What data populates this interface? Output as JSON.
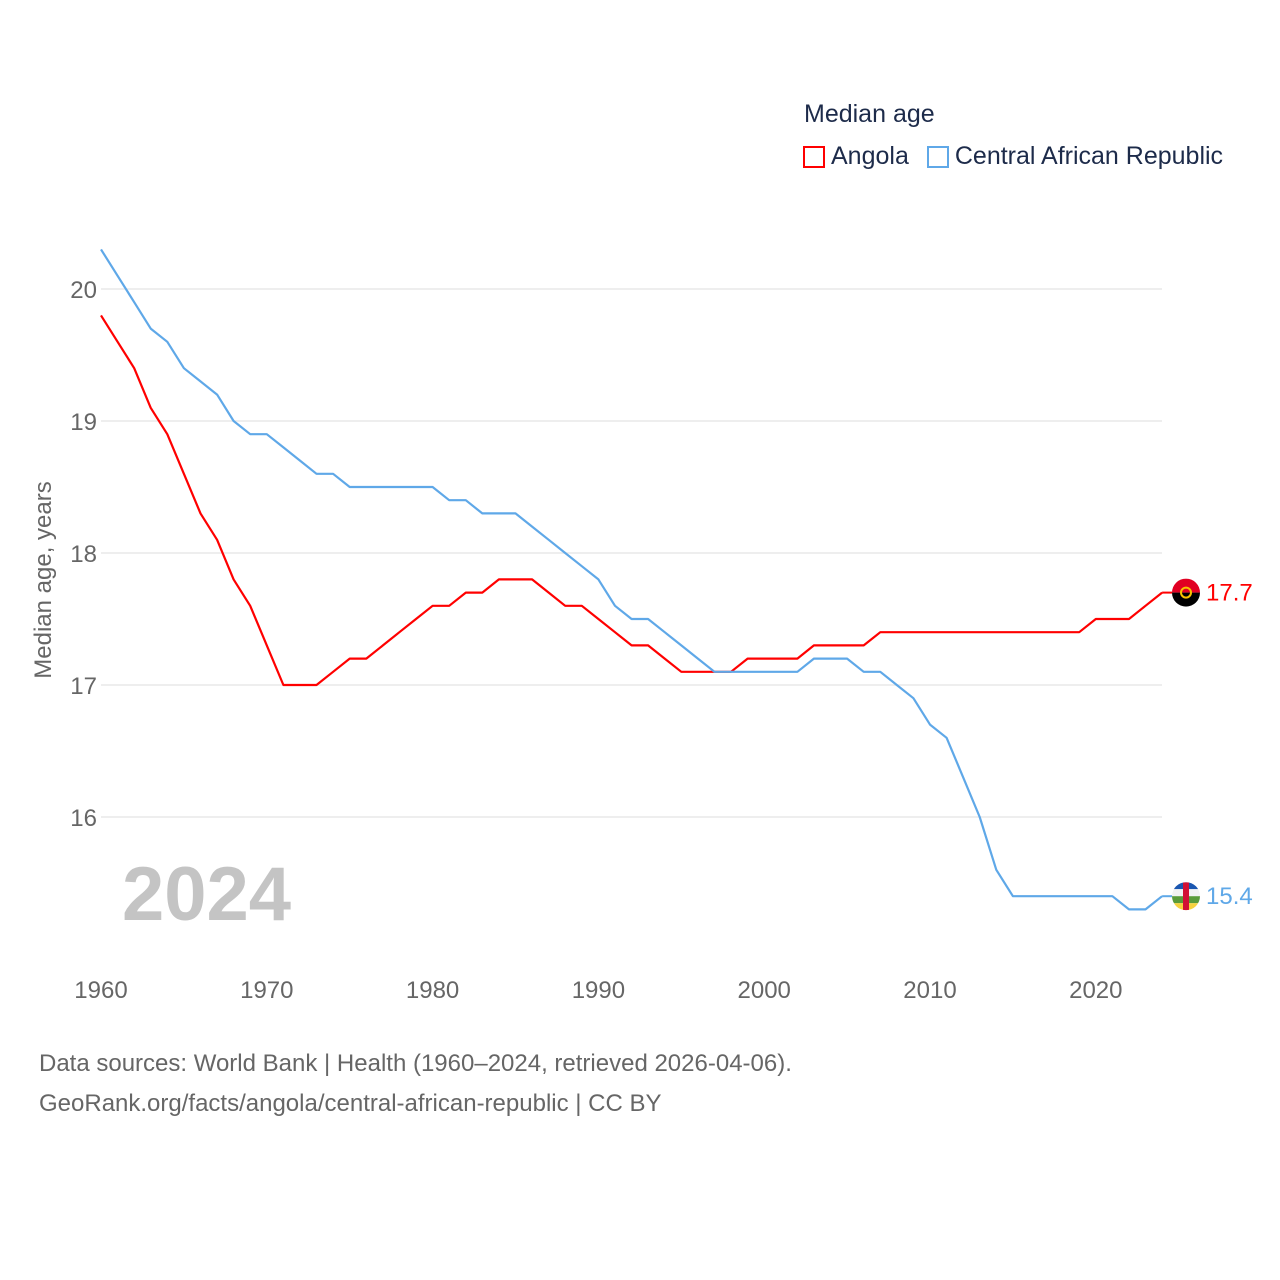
{
  "chart_data": {
    "type": "line",
    "title": "Median age",
    "ylabel": "Median age, years",
    "xlabel": "",
    "xlim": [
      1960,
      2024
    ],
    "ylim": [
      15.0,
      20.5
    ],
    "x_ticks": [
      1960,
      1970,
      1980,
      1990,
      2000,
      2010,
      2020
    ],
    "y_ticks": [
      16,
      17,
      18,
      19,
      20
    ],
    "grid": true,
    "legend_position": "top-right",
    "current_year_label": "2024",
    "x": [
      1960,
      1961,
      1962,
      1963,
      1964,
      1965,
      1966,
      1967,
      1968,
      1969,
      1970,
      1971,
      1972,
      1973,
      1974,
      1975,
      1976,
      1977,
      1978,
      1979,
      1980,
      1981,
      1982,
      1983,
      1984,
      1985,
      1986,
      1987,
      1988,
      1989,
      1990,
      1991,
      1992,
      1993,
      1994,
      1995,
      1996,
      1997,
      1998,
      1999,
      2000,
      2001,
      2002,
      2003,
      2004,
      2005,
      2006,
      2007,
      2008,
      2009,
      2010,
      2011,
      2012,
      2013,
      2014,
      2015,
      2016,
      2017,
      2018,
      2019,
      2020,
      2021,
      2022,
      2023,
      2024
    ],
    "series": [
      {
        "name": "Angola",
        "color": "#ff0000",
        "end_label": "17.7",
        "values": [
          19.8,
          19.6,
          19.4,
          19.1,
          18.9,
          18.6,
          18.3,
          18.1,
          17.8,
          17.6,
          17.3,
          17.0,
          17.0,
          17.0,
          17.1,
          17.2,
          17.2,
          17.3,
          17.4,
          17.5,
          17.6,
          17.6,
          17.7,
          17.7,
          17.8,
          17.8,
          17.8,
          17.7,
          17.6,
          17.6,
          17.5,
          17.4,
          17.3,
          17.3,
          17.2,
          17.1,
          17.1,
          17.1,
          17.1,
          17.2,
          17.2,
          17.2,
          17.2,
          17.3,
          17.3,
          17.3,
          17.3,
          17.4,
          17.4,
          17.4,
          17.4,
          17.4,
          17.4,
          17.4,
          17.4,
          17.4,
          17.4,
          17.4,
          17.4,
          17.4,
          17.5,
          17.5,
          17.5,
          17.6,
          17.7
        ]
      },
      {
        "name": "Central African Republic",
        "color": "#5fa8e8",
        "end_label": "15.4",
        "values": [
          20.3,
          20.1,
          19.9,
          19.7,
          19.6,
          19.4,
          19.3,
          19.2,
          19.0,
          18.9,
          18.9,
          18.8,
          18.7,
          18.6,
          18.6,
          18.5,
          18.5,
          18.5,
          18.5,
          18.5,
          18.5,
          18.4,
          18.4,
          18.3,
          18.3,
          18.3,
          18.2,
          18.1,
          18.0,
          17.9,
          17.8,
          17.6,
          17.5,
          17.5,
          17.4,
          17.3,
          17.2,
          17.1,
          17.1,
          17.1,
          17.1,
          17.1,
          17.1,
          17.2,
          17.2,
          17.2,
          17.1,
          17.1,
          17.0,
          16.9,
          16.7,
          16.6,
          16.3,
          16.0,
          15.6,
          15.4,
          15.4,
          15.4,
          15.4,
          15.4,
          15.4,
          15.4,
          15.3,
          15.3,
          15.4
        ]
      }
    ]
  },
  "footer": {
    "line1": "Data sources: World Bank | Health (1960–2024, retrieved 2026-04-06).",
    "line2": "GeoRank.org/facts/angola/central-african-republic | CC BY"
  }
}
